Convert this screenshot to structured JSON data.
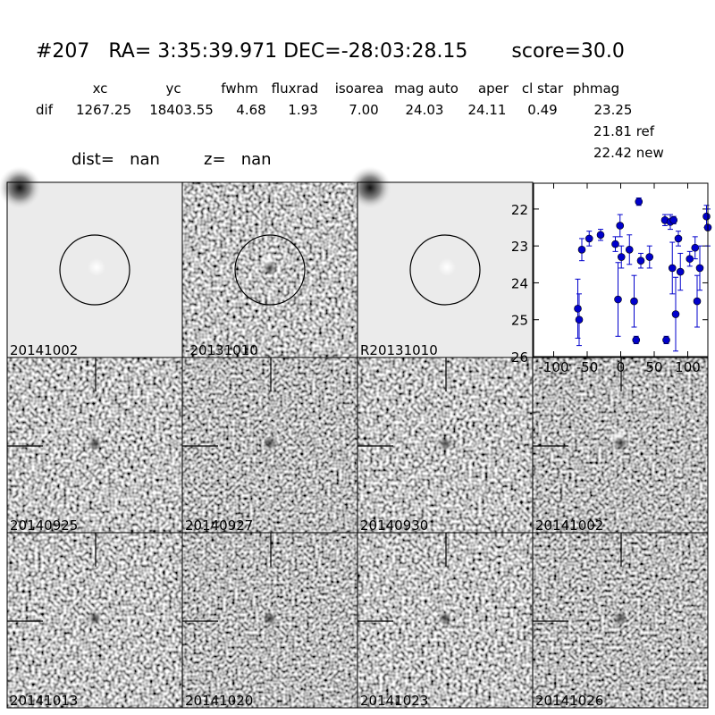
{
  "header": {
    "title": "#207   RA= 3:35:39.971 DEC=-28:03:28.15       score=30.0",
    "columns": [
      "xc",
      "yc",
      "fwhm",
      "fluxrad",
      "isoarea",
      "mag auto",
      "aper",
      "cl star",
      "phmag"
    ],
    "row_label": "dif",
    "row_values": [
      "1267.25",
      "18403.55",
      "4.68",
      "1.93",
      "7.00",
      "24.03",
      "24.11",
      "0.49",
      "23.25"
    ],
    "ref": "21.81 ref",
    "new": "22.42 new",
    "dist": "dist=   nan",
    "z": "z=   nan"
  },
  "panels": [
    {
      "label": "20141002"
    },
    {
      "label": "-20131010"
    },
    {
      "label": "R20131010"
    },
    {
      "label": "20140925"
    },
    {
      "label": "20140927"
    },
    {
      "label": "20140930"
    },
    {
      "label": "20141002",
      "color": "#ff0000"
    },
    {
      "label": "20141013"
    },
    {
      "label": "20141020"
    },
    {
      "label": "20141023"
    },
    {
      "label": "20141026"
    }
  ],
  "chart_data": {
    "type": "scatter",
    "color": "#0000cc",
    "x": [
      -64,
      -62,
      -58,
      -47,
      -30,
      -8,
      -4,
      -1,
      1,
      13,
      20,
      23,
      27,
      30,
      43,
      66,
      68,
      74,
      77,
      79,
      82,
      86,
      89,
      103,
      111,
      114,
      118,
      128,
      130
    ],
    "values": [
      24.7,
      25.0,
      23.1,
      22.8,
      22.7,
      22.95,
      24.45,
      22.45,
      23.3,
      23.1,
      24.5,
      25.55,
      21.8,
      23.4,
      23.3,
      22.3,
      25.55,
      22.35,
      23.6,
      22.3,
      24.85,
      22.8,
      23.7,
      23.35,
      23.05,
      24.5,
      23.6,
      22.2,
      22.5
    ],
    "errors": [
      0.8,
      0.7,
      0.3,
      0.2,
      0.15,
      0.2,
      1.0,
      0.3,
      0.3,
      0.4,
      0.7,
      0.1,
      0.1,
      0.2,
      0.3,
      0.15,
      0.1,
      0.2,
      0.7,
      0.1,
      1.0,
      0.2,
      0.5,
      0.2,
      0.3,
      0.7,
      0.6,
      0.3,
      0.5
    ],
    "xlim": [
      -130,
      130
    ],
    "xticks": [
      -100,
      -50,
      0,
      50,
      100
    ],
    "ylim": [
      26,
      21.3
    ],
    "yticks": [
      22,
      23,
      24,
      25,
      26
    ],
    "y_inverted": true
  }
}
